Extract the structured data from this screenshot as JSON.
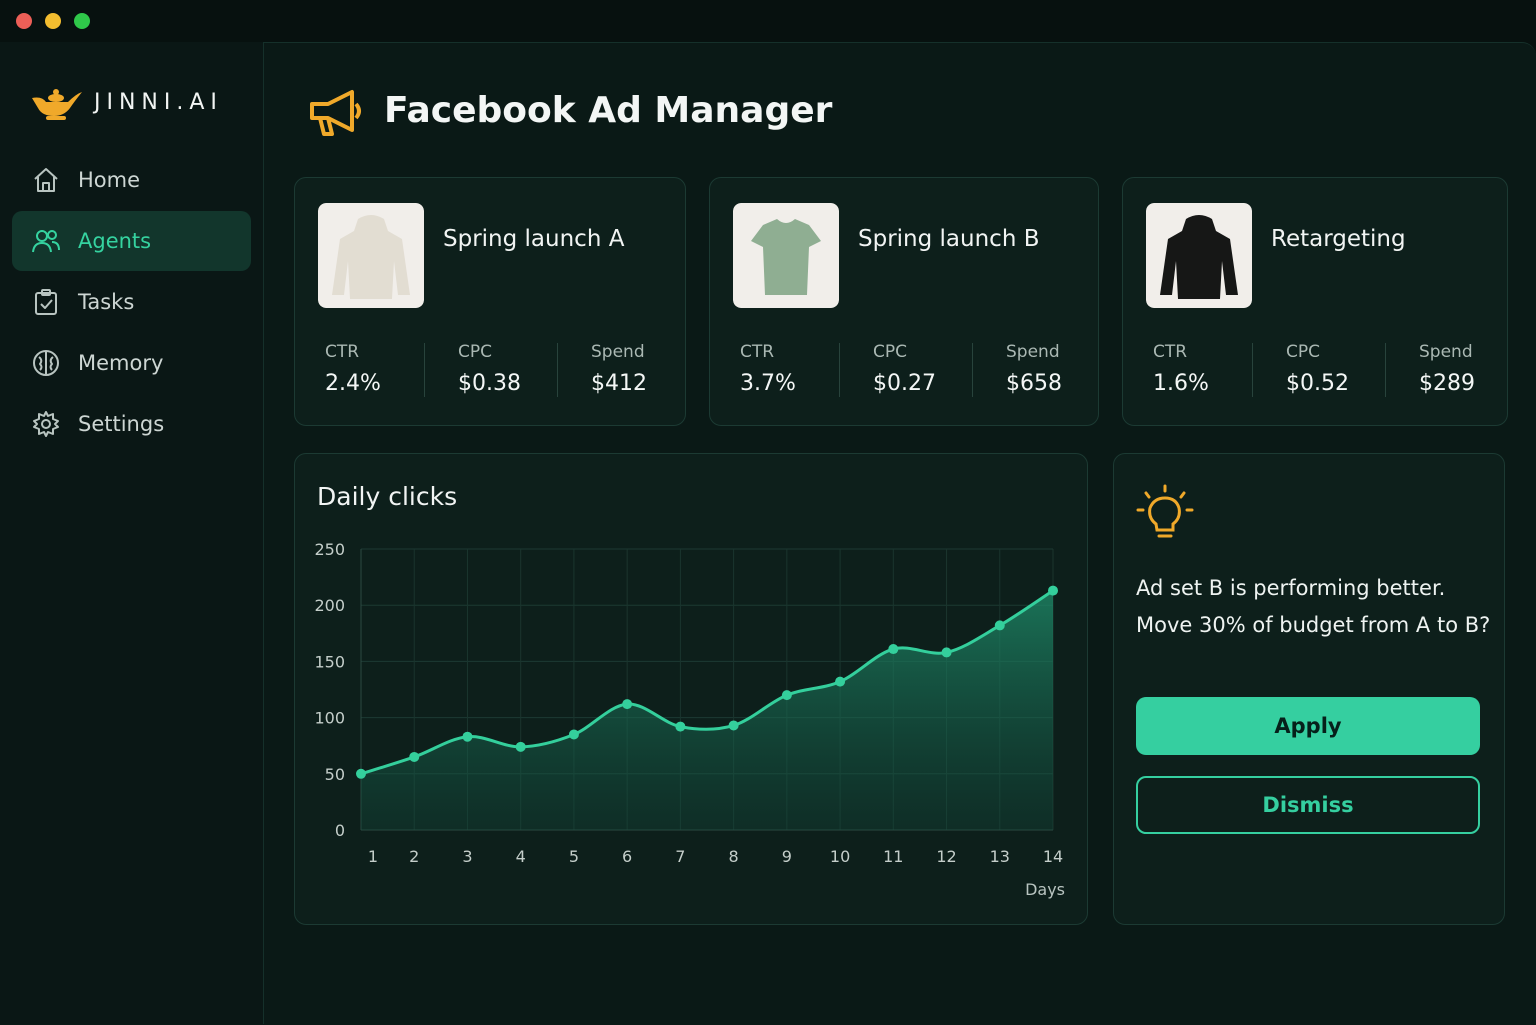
{
  "sidebar": {
    "brand": "JINNI.AI",
    "nav": [
      "Home",
      "Agents",
      "Tasks",
      "Memory",
      "Settings"
    ],
    "active": 1
  },
  "header": {
    "title": "Facebook Ad Manager"
  },
  "campaigns": [
    {
      "name": "Spring launch A",
      "metrics": [
        {
          "label": "CTR",
          "value": "2.4%"
        },
        {
          "label": "CPC",
          "value": "$0.38"
        },
        {
          "label": "Spend",
          "value": "$412"
        }
      ]
    },
    {
      "name": "Spring launch B",
      "metrics": [
        {
          "label": "CTR",
          "value": "3.7%"
        },
        {
          "label": "CPC",
          "value": "$0.27"
        },
        {
          "label": "Spend",
          "value": "$658"
        }
      ]
    },
    {
      "name": "Retargeting",
      "metrics": [
        {
          "label": "CTR",
          "value": "1.6%"
        },
        {
          "label": "CPC",
          "value": "$0.52"
        },
        {
          "label": "Spend",
          "value": "$289"
        }
      ]
    }
  ],
  "chart_data": {
    "type": "line",
    "title": "Daily clicks",
    "xlabel": "Days",
    "x": [
      1,
      2,
      3,
      4,
      5,
      6,
      7,
      8,
      9,
      10,
      11,
      12,
      13,
      14
    ],
    "xlim": [
      1,
      14
    ],
    "series": [
      {
        "color": "#34cf9c",
        "values": [
          50,
          65,
          83,
          74,
          85,
          112,
          92,
          93,
          120,
          132,
          161,
          158,
          182,
          213
        ]
      }
    ],
    "ylim": [
      0,
      250
    ],
    "yticks": [
      0,
      50,
      100,
      150,
      200,
      250
    ],
    "grid": true
  },
  "suggestion": {
    "lines": [
      "Ad set B is performing better.",
      "Move 30% of budget from A to B?"
    ],
    "buttons": [
      "Apply",
      "Dismiss"
    ]
  }
}
